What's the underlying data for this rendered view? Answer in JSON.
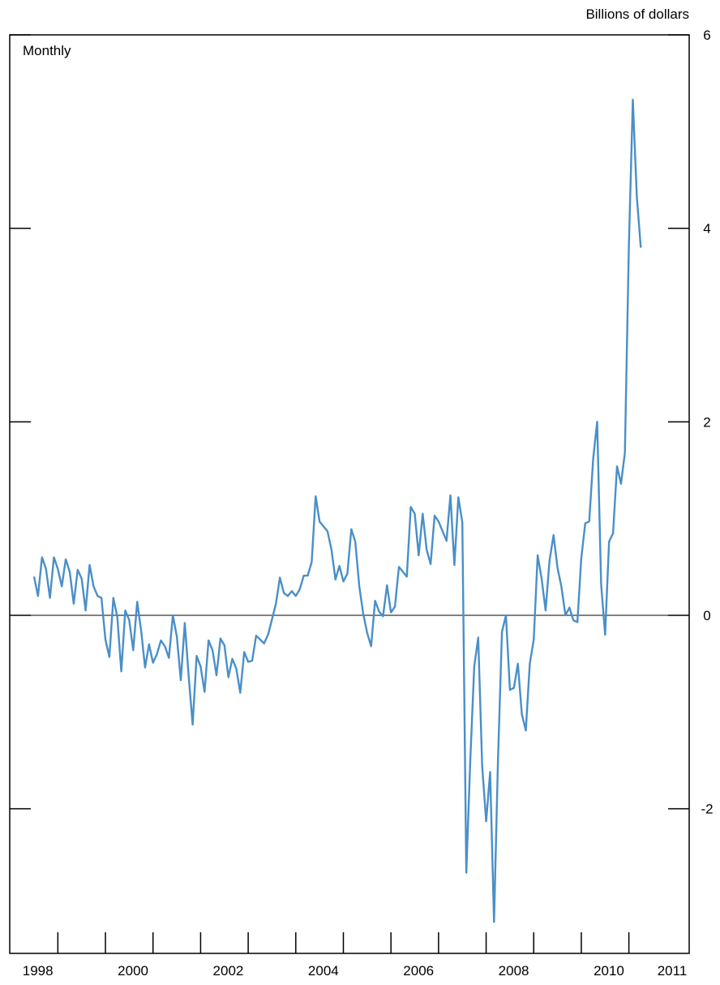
{
  "chart_data": {
    "type": "line",
    "unit_label": "Billions of dollars",
    "frequency_label": "Monthly",
    "ylim": [
      -3.2,
      6
    ],
    "y_ticks": [
      -2,
      0,
      2,
      4,
      6
    ],
    "y_tick_labels": [
      "-2",
      "0",
      "2",
      "4",
      "6"
    ],
    "x_range": [
      1998.0,
      2011.0
    ],
    "x_tick_labels": [
      {
        "label": "1998",
        "year": 1998
      },
      {
        "label": "2000",
        "year": 2000
      },
      {
        "label": "2002",
        "year": 2002
      },
      {
        "label": "2004",
        "year": 2004
      },
      {
        "label": "2006",
        "year": 2006
      },
      {
        "label": "2008",
        "year": 2008
      },
      {
        "label": "2010",
        "year": 2010
      },
      {
        "label": "2011",
        "year": 2011
      }
    ],
    "zero_line": true,
    "series": [
      {
        "color": "#4a8fc8",
        "start": "1998-01",
        "values": [
          0.4,
          0.2,
          0.6,
          0.48,
          0.18,
          0.6,
          0.48,
          0.3,
          0.58,
          0.45,
          0.12,
          0.47,
          0.38,
          0.05,
          0.52,
          0.3,
          0.2,
          0.18,
          -0.25,
          -0.43,
          0.18,
          -0.02,
          -0.58,
          0.05,
          -0.05,
          -0.36,
          0.14,
          -0.16,
          -0.54,
          -0.3,
          -0.49,
          -0.4,
          -0.26,
          -0.32,
          -0.44,
          0.0,
          -0.22,
          -0.67,
          -0.08,
          -0.63,
          -1.13,
          -0.42,
          -0.53,
          -0.79,
          -0.26,
          -0.36,
          -0.62,
          -0.24,
          -0.31,
          -0.64,
          -0.45,
          -0.55,
          -0.8,
          -0.38,
          -0.48,
          -0.47,
          -0.21,
          -0.25,
          -0.29,
          -0.2,
          -0.04,
          0.12,
          0.39,
          0.23,
          0.2,
          0.25,
          0.2,
          0.27,
          0.41,
          0.41,
          0.55,
          1.23,
          0.97,
          0.92,
          0.87,
          0.68,
          0.37,
          0.51,
          0.35,
          0.43,
          0.89,
          0.76,
          0.3,
          0.02,
          -0.18,
          -0.32,
          0.15,
          0.04,
          -0.01,
          0.31,
          0.03,
          0.09,
          0.5,
          0.45,
          0.4,
          1.12,
          1.05,
          0.62,
          1.05,
          0.68,
          0.53,
          1.03,
          0.97,
          0.87,
          0.77,
          1.24,
          0.52,
          1.22,
          0.96,
          -2.66,
          -1.5,
          -0.53,
          -0.23,
          -1.56,
          -2.13,
          -1.62,
          -3.17,
          -1.49,
          -0.17,
          0.0,
          -0.77,
          -0.75,
          -0.5,
          -1.02,
          -1.19,
          -0.5,
          -0.25,
          0.62,
          0.38,
          0.05,
          0.57,
          0.83,
          0.49,
          0.29,
          0.0,
          0.08,
          -0.05,
          -0.07,
          0.59,
          0.95,
          0.97,
          1.62,
          2.0,
          0.32,
          -0.2,
          0.76,
          0.85,
          1.54,
          1.36,
          1.68,
          3.82,
          5.33,
          4.33,
          3.8
        ]
      }
    ]
  }
}
